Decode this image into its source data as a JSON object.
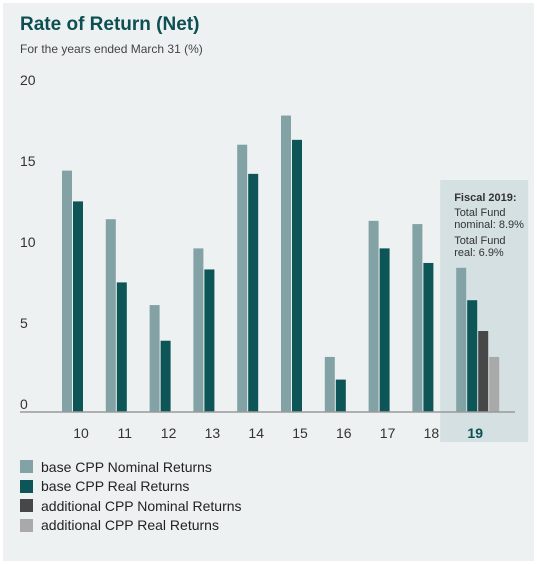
{
  "title": "Rate of Return (Net)",
  "subtitle": "For the years ended March 31 (%)",
  "highlight": {
    "title": "Fiscal 2019:",
    "lines": [
      "Total Fund",
      "nominal: 8.9%",
      "Total Fund",
      "real: 6.9%"
    ]
  },
  "legend": [
    {
      "label": "base CPP Nominal Returns",
      "color": "#83a2a5"
    },
    {
      "label": "base CPP Real Returns",
      "color": "#0d5556"
    },
    {
      "label": "additional CPP Nominal Returns",
      "color": "#474747"
    },
    {
      "label": "additional CPP Real Returns",
      "color": "#a9a9a9"
    }
  ],
  "chart_data": {
    "type": "bar",
    "title": "Rate of Return (Net)",
    "subtitle": "For the years ended March 31 (%)",
    "categories": [
      "10",
      "11",
      "12",
      "13",
      "14",
      "15",
      "16",
      "17",
      "18",
      "19"
    ],
    "highlighted_category": "19",
    "ylim": [
      0,
      20
    ],
    "yticks": [
      0,
      5,
      10,
      15,
      20
    ],
    "grid": false,
    "legend_position": "bottom",
    "series": [
      {
        "name": "base CPP Nominal Returns",
        "color": "#83a2a5",
        "values": [
          14.9,
          11.9,
          6.6,
          10.1,
          16.5,
          18.3,
          3.4,
          11.8,
          11.6,
          8.9
        ]
      },
      {
        "name": "base CPP Real Returns",
        "color": "#0d5556",
        "values": [
          13.0,
          8.0,
          4.4,
          8.8,
          14.7,
          16.8,
          2.0,
          10.1,
          9.2,
          6.9
        ]
      },
      {
        "name": "additional CPP Nominal Returns",
        "color": "#474747",
        "values": [
          null,
          null,
          null,
          null,
          null,
          null,
          null,
          null,
          null,
          5.0
        ]
      },
      {
        "name": "additional CPP Real Returns",
        "color": "#a9a9a9",
        "values": [
          null,
          null,
          null,
          null,
          null,
          null,
          null,
          null,
          null,
          3.4
        ]
      }
    ]
  }
}
